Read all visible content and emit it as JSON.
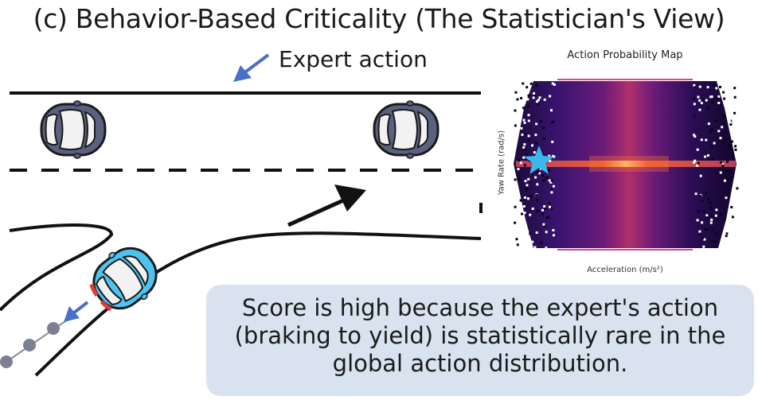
{
  "figure": {
    "title": "(c) Behavior-Based Criticality (The Statistician's View)"
  },
  "scene": {
    "expert_label": "Expert action"
  },
  "action_map": {
    "title": "Action Probability Map",
    "xlabel": "Acceleration (m/s²)",
    "ylabel": "Yaw Rate (rad/s)"
  },
  "caption": {
    "text": "Score is high because the expert's action (braking to yield) is statistically rare in the global action distribution."
  },
  "colors": {
    "car_main": "#4fc3f0",
    "car_other": "#5a6280",
    "marker_star": "#39b9ec",
    "arrow_blue": "#4a6fc7",
    "caption_bg": "#d8e3ef"
  }
}
